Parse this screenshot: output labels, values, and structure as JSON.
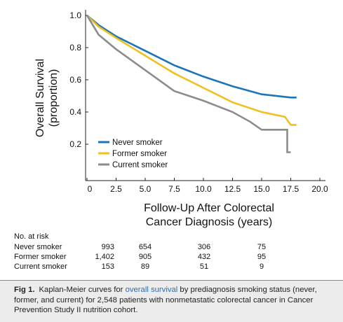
{
  "chart_data": {
    "type": "line",
    "y_label": [
      "Overall Survival",
      "(proportion)"
    ],
    "x_label": [
      "Follow-Up After Colorectal",
      "Cancer Diagnosis (years)"
    ],
    "xlim": [
      0,
      20
    ],
    "ylim": [
      0,
      1
    ],
    "xticks": [
      0,
      2.5,
      {
        "value": 5,
        "label": "5.0"
      },
      7.5,
      {
        "value": 10,
        "label": "10.0"
      },
      12.5,
      {
        "value": 15,
        "label": "15.0"
      },
      17.5,
      {
        "value": 20,
        "label": "20.0"
      }
    ],
    "yticks": [
      0.2,
      0.4,
      0.6,
      0.8,
      {
        "value": 1,
        "label": "1.0"
      }
    ],
    "series": [
      {
        "name": "Never smoker",
        "color": "#1b75bb",
        "x": [
          0,
          1,
          2.5,
          5,
          7.5,
          10,
          12.5,
          15,
          17.5,
          18
        ],
        "values": [
          1.0,
          0.94,
          0.87,
          0.78,
          0.69,
          0.62,
          0.56,
          0.51,
          0.49,
          0.49
        ]
      },
      {
        "name": "Former smoker",
        "color": "#f0c020",
        "x": [
          0,
          1,
          2.5,
          5,
          7.5,
          10,
          12.5,
          15,
          17,
          17.5,
          18
        ],
        "values": [
          1.0,
          0.93,
          0.86,
          0.75,
          0.64,
          0.55,
          0.46,
          0.4,
          0.37,
          0.32,
          0.32
        ]
      },
      {
        "name": "Current smoker",
        "color": "#8c8c8c",
        "x": [
          0,
          1,
          2.5,
          5,
          7.5,
          10,
          12.5,
          14,
          15,
          17.2,
          17.2,
          17.5
        ],
        "values": [
          1.0,
          0.88,
          0.79,
          0.66,
          0.53,
          0.47,
          0.4,
          0.34,
          0.29,
          0.29,
          0.15,
          0.15
        ]
      }
    ]
  },
  "risk_table": {
    "title": "No. at risk",
    "rows": [
      {
        "label": "Never smoker",
        "counts": [
          "993",
          "654",
          "306",
          "75"
        ]
      },
      {
        "label": "Former smoker",
        "counts": [
          "1,402",
          "905",
          "432",
          "95"
        ]
      },
      {
        "label": "Current smoker",
        "counts": [
          "153",
          "89",
          "51",
          "9"
        ]
      }
    ]
  },
  "caption": {
    "label": "Fig 1.",
    "text_before": "Kaplan-Meier curves for ",
    "link": "overall survival",
    "text_after": " by prediagnosis smoking status (never, former, and current) for 2,548 patients with nonmetastatic colorectal cancer in Cancer Prevention Study II nutrition cohort."
  }
}
